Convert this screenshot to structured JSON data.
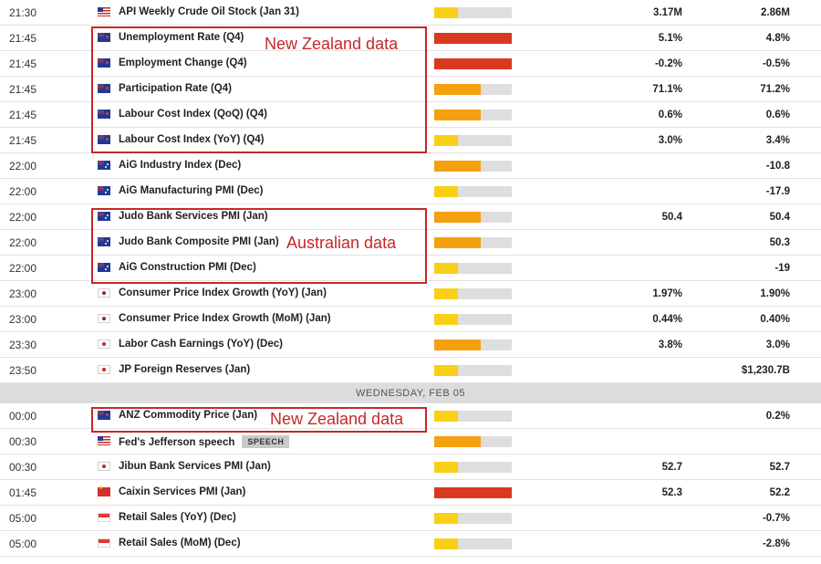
{
  "section1": [
    {
      "time": "21:30",
      "flag": "us",
      "event": "API Weekly Crude Oil Stock (Jan 31)",
      "impact": 0.3,
      "impact_color": "#f9cf17",
      "actual": "3.17M",
      "previous": "2.86M"
    },
    {
      "time": "21:45",
      "flag": "nz",
      "event": "Unemployment Rate (Q4)",
      "impact": 1.0,
      "impact_color": "#d9391e",
      "actual": "5.1%",
      "previous": "4.8%"
    },
    {
      "time": "21:45",
      "flag": "nz",
      "event": "Employment Change (Q4)",
      "impact": 1.0,
      "impact_color": "#d9391e",
      "actual": "-0.2%",
      "previous": "-0.5%"
    },
    {
      "time": "21:45",
      "flag": "nz",
      "event": "Participation Rate (Q4)",
      "impact": 0.6,
      "impact_color": "#f4a00f",
      "actual": "71.1%",
      "previous": "71.2%"
    },
    {
      "time": "21:45",
      "flag": "nz",
      "event": "Labour Cost Index (QoQ) (Q4)",
      "impact": 0.6,
      "impact_color": "#f4a00f",
      "actual": "0.6%",
      "previous": "0.6%"
    },
    {
      "time": "21:45",
      "flag": "nz",
      "event": "Labour Cost Index (YoY) (Q4)",
      "impact": 0.3,
      "impact_color": "#f9cf17",
      "actual": "3.0%",
      "previous": "3.4%"
    },
    {
      "time": "22:00",
      "flag": "au",
      "event": "AiG Industry Index (Dec)",
      "impact": 0.6,
      "impact_color": "#f4a00f",
      "actual": "",
      "previous": "-10.8"
    },
    {
      "time": "22:00",
      "flag": "au",
      "event": "AiG Manufacturing PMI (Dec)",
      "impact": 0.3,
      "impact_color": "#f9cf17",
      "actual": "",
      "previous": "-17.9"
    },
    {
      "time": "22:00",
      "flag": "au",
      "event": "Judo Bank Services PMI (Jan)",
      "impact": 0.6,
      "impact_color": "#f4a00f",
      "actual": "50.4",
      "previous": "50.4"
    },
    {
      "time": "22:00",
      "flag": "au",
      "event": "Judo Bank Composite PMI (Jan)",
      "impact": 0.6,
      "impact_color": "#f4a00f",
      "actual": "",
      "previous": "50.3"
    },
    {
      "time": "22:00",
      "flag": "au",
      "event": "AiG Construction PMI (Dec)",
      "impact": 0.3,
      "impact_color": "#f9cf17",
      "actual": "",
      "previous": "-19"
    },
    {
      "time": "23:00",
      "flag": "kr",
      "event": "Consumer Price Index Growth (YoY) (Jan)",
      "impact": 0.3,
      "impact_color": "#f9cf17",
      "actual": "1.97%",
      "previous": "1.90%"
    },
    {
      "time": "23:00",
      "flag": "kr",
      "event": "Consumer Price Index Growth (MoM) (Jan)",
      "impact": 0.3,
      "impact_color": "#f9cf17",
      "actual": "0.44%",
      "previous": "0.40%"
    },
    {
      "time": "23:30",
      "flag": "jp",
      "event": "Labor Cash Earnings (YoY) (Dec)",
      "impact": 0.6,
      "impact_color": "#f4a00f",
      "actual": "3.8%",
      "previous": "3.0%"
    },
    {
      "time": "23:50",
      "flag": "jp",
      "event": "JP Foreign Reserves (Jan)",
      "impact": 0.3,
      "impact_color": "#f9cf17",
      "actual": "",
      "previous": "$1,230.7B"
    }
  ],
  "day_header": "WEDNESDAY, FEB 05",
  "section2": [
    {
      "time": "00:00",
      "flag": "nz",
      "event": "ANZ Commodity Price (Jan)",
      "impact": 0.3,
      "impact_color": "#f9cf17",
      "actual": "",
      "previous": "0.2%"
    },
    {
      "time": "00:30",
      "flag": "us",
      "event": "Fed's Jefferson speech",
      "tag": "SPEECH",
      "impact": 0.6,
      "impact_color": "#f4a00f",
      "actual": "",
      "previous": ""
    },
    {
      "time": "00:30",
      "flag": "jp",
      "event": "Jibun Bank Services PMI (Jan)",
      "impact": 0.3,
      "impact_color": "#f9cf17",
      "actual": "52.7",
      "previous": "52.7"
    },
    {
      "time": "01:45",
      "flag": "cn",
      "event": "Caixin Services PMI (Jan)",
      "impact": 1.0,
      "impact_color": "#d9391e",
      "actual": "52.3",
      "previous": "52.2"
    },
    {
      "time": "05:00",
      "flag": "sg",
      "event": "Retail Sales (YoY) (Dec)",
      "impact": 0.3,
      "impact_color": "#f9cf17",
      "actual": "",
      "previous": "-0.7%"
    },
    {
      "time": "05:00",
      "flag": "sg",
      "event": "Retail Sales (MoM) (Dec)",
      "impact": 0.3,
      "impact_color": "#f9cf17",
      "actual": "",
      "previous": "-2.8%"
    }
  ],
  "annotations": [
    {
      "id": "nz-box-1",
      "label": "New Zealand data",
      "color": "#c62828"
    },
    {
      "id": "au-box",
      "label": "Australian data",
      "color": "#c62828"
    },
    {
      "id": "nz-box-2",
      "label": "New Zealand data",
      "color": "#c62828"
    }
  ]
}
